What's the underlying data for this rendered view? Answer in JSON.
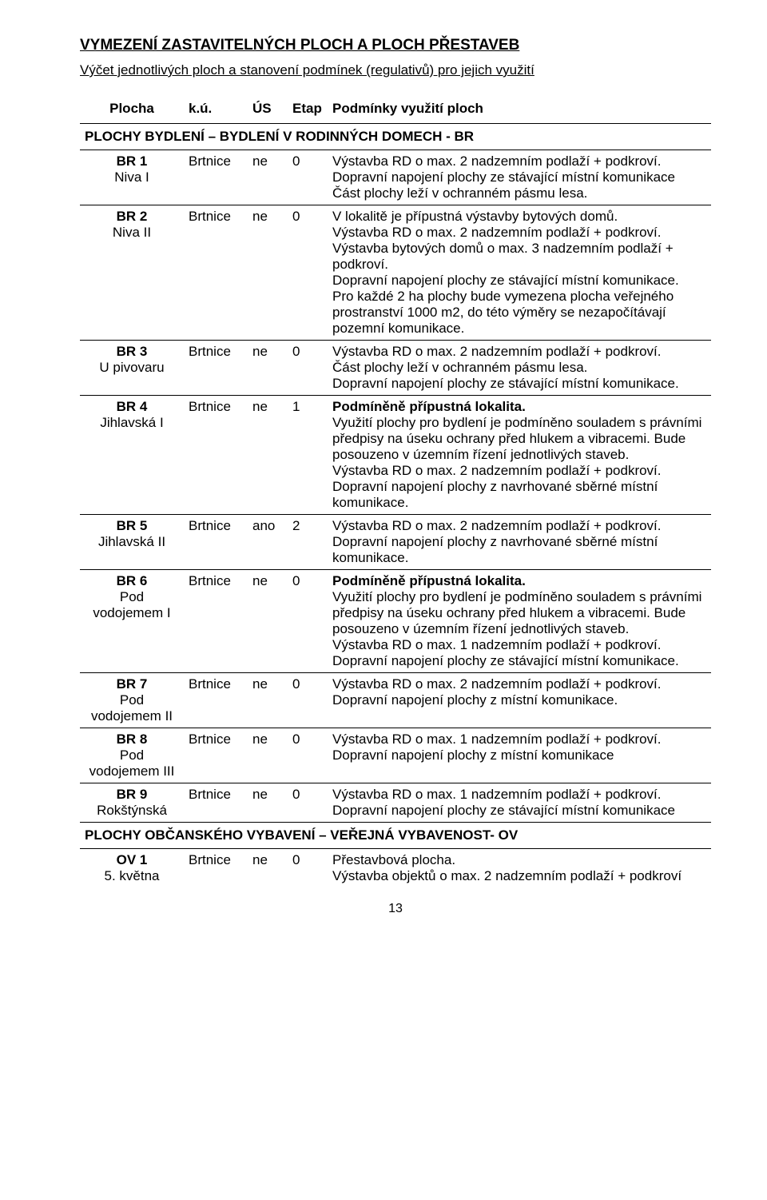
{
  "title": "VYMEZENÍ ZASTAVITELNÝCH PLOCH A PLOCH PŘESTAVEB",
  "subtitle": "Výčet jednotlivých ploch a stanovení podmínek (regulativů) pro jejich využití",
  "header": {
    "plocha": "Plocha",
    "ku": "k.ú.",
    "us": "ÚS",
    "etap": "Etap",
    "desc": "Podmínky využití ploch"
  },
  "section1": "PLOCHY BYDLENÍ – BYDLENÍ V RODINNÝCH DOMECH - BR",
  "rows": [
    {
      "code": "BR 1",
      "name": "Niva I",
      "ku": "Brtnice",
      "us": "ne",
      "etap": "0",
      "desc": "Výstavba RD  o max. 2 nadzemním podlaží + podkroví.\nDopravní napojení plochy ze stávající místní komunikace\nČást plochy leží v ochranném pásmu lesa."
    },
    {
      "code": "BR 2",
      "name": "Niva II",
      "ku": "Brtnice",
      "us": "ne",
      "etap": "0",
      "desc": "V lokalitě je přípustná výstavby bytových domů.\nVýstavba RD  o max. 2 nadzemním podlaží + podkroví.\nVýstavba bytových domů  o max. 3 nadzemním podlaží + podkroví.\nDopravní napojení plochy ze stávající místní komunikace.\nPro každé 2 ha plochy bude vymezena plocha veřejného prostranství 1000 m2, do této výměry se nezapočítávají pozemní komunikace."
    },
    {
      "code": "BR 3",
      "name": "U pivovaru",
      "ku": "Brtnice",
      "us": "ne",
      "etap": "0",
      "desc": "Výstavba RD  o max. 2 nadzemním podlaží + podkroví.\nČást plochy leží v ochranném pásmu lesa.\nDopravní napojení plochy ze stávající místní komunikace."
    },
    {
      "code": "BR 4",
      "name": "Jihlavská I",
      "ku": "Brtnice",
      "us": "ne",
      "etap": "1",
      "descHtml": "<span class='bold'>Podmíněně přípustná lokalita.</span><br>Využití plochy pro bydlení je podmíněno souladem s právními předpisy na úseku ochrany před hlukem a vibracemi. Bude posouzeno v územním řízení jednotlivých staveb.<br>Výstavba RD  o max. 2 nadzemním podlaží + podkroví.<br>Dopravní napojení plochy z navrhované sběrné  místní komunikace."
    },
    {
      "code": "BR 5",
      "name": "Jihlavská II",
      "ku": "Brtnice",
      "us": "ano",
      "etap": "2",
      "desc": "Výstavba RD  o max. 2 nadzemním podlaží + podkroví.\nDopravní napojení plochy z navrhované sběrné  místní komunikace."
    },
    {
      "code": "BR 6",
      "name": "Pod vodojemem I",
      "ku": "Brtnice",
      "us": "ne",
      "etap": "0",
      "descHtml": "<span class='bold'>Podmíněně přípustná lokalita.</span><br>Využití plochy pro bydlení je podmíněno souladem s právními předpisy na úseku ochrany před hlukem a vibracemi. Bude posouzeno v územním řízení jednotlivých staveb.<br>Výstavba RD  o max. 1 nadzemním podlaží + podkroví.<br>Dopravní napojení plochy ze stávající místní komunikace."
    },
    {
      "code": "BR 7",
      "name": "Pod vodojemem II",
      "ku": "Brtnice",
      "us": "ne",
      "etap": "0",
      "desc": "Výstavba RD  o max. 2 nadzemním podlaží + podkroví.\nDopravní napojení plochy z místní komunikace."
    },
    {
      "code": "BR 8",
      "name": "Pod vodojemem III",
      "ku": "Brtnice",
      "us": "ne",
      "etap": "0",
      "desc": "Výstavba RD  o max. 1 nadzemním podlaží + podkroví.\nDopravní napojení plochy z místní komunikace"
    },
    {
      "code": "BR 9",
      "name": "Rokštýnská",
      "ku": "Brtnice",
      "us": "ne",
      "etap": "0",
      "desc": "Výstavba RD  o max. 1 nadzemním podlaží + podkroví.\nDopravní napojení plochy ze stávající místní komunikace"
    }
  ],
  "section2": "PLOCHY OBČANSKÉHO VYBAVENÍ – VEŘEJNÁ VYBAVENOST- OV",
  "rows2": [
    {
      "code": "OV 1",
      "name": "5. května",
      "ku": "Brtnice",
      "us": "ne",
      "etap": "0",
      "desc": "Přestavbová plocha.\nVýstavba objektů o max. 2 nadzemním podlaží + podkroví"
    }
  ],
  "pageNumber": "13"
}
